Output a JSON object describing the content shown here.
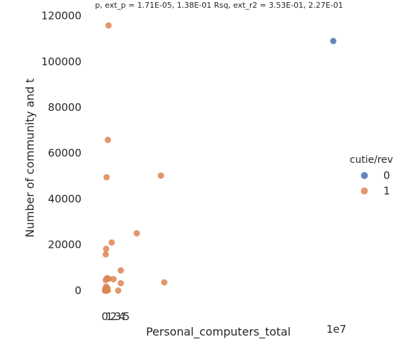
{
  "chart_data": {
    "type": "scatter",
    "title": "p, ext_p = 1.71E-05, 1.38E-01 Rsq, ext_r2 = 3.53E-01, 2.27E-01",
    "xlabel": "Personal_computers_total",
    "ylabel": "Number of community and t",
    "x_offset_text": "1e7",
    "xlim": [
      -2.5,
      55.5
    ],
    "ylim": [
      -8000,
      122000
    ],
    "x_ticks": [
      0,
      1,
      2,
      3,
      4,
      5
    ],
    "x_tick_labels": [
      "0",
      "1",
      "2",
      "3",
      "4",
      "5"
    ],
    "y_ticks": [
      0,
      20000,
      40000,
      60000,
      80000,
      100000,
      120000
    ],
    "y_tick_labels": [
      "0",
      "20000",
      "40000",
      "60000",
      "80000",
      "100000",
      "120000"
    ],
    "legend": {
      "title": "cutie/rev",
      "placement": "center-right",
      "entries": [
        {
          "label": "0",
          "color": "#4c72b0"
        },
        {
          "label": "1",
          "color": "#dd8452"
        }
      ]
    },
    "series": [
      {
        "name": "0",
        "color": "#4c72b0",
        "points": [
          [
            53.0,
            109000
          ]
        ]
      },
      {
        "name": "1",
        "color": "#dd8452",
        "points": [
          [
            0.85,
            115800
          ],
          [
            0.7,
            65800
          ],
          [
            0.4,
            49500
          ],
          [
            13.0,
            50200
          ],
          [
            7.4,
            25000
          ],
          [
            1.6,
            21000
          ],
          [
            0.3,
            18200
          ],
          [
            0.2,
            15800
          ],
          [
            3.7,
            8800
          ],
          [
            0.5,
            5400
          ],
          [
            0.9,
            5200
          ],
          [
            2.0,
            5000
          ],
          [
            0.2,
            4600
          ],
          [
            13.8,
            3600
          ],
          [
            3.7,
            3200
          ],
          [
            0.3,
            1700
          ],
          [
            0.6,
            1000
          ],
          [
            0.1,
            800
          ],
          [
            0.2,
            400
          ],
          [
            0.4,
            200
          ],
          [
            0.1,
            100
          ],
          [
            0.05,
            0
          ],
          [
            0.3,
            -100
          ],
          [
            0.7,
            50
          ],
          [
            3.1,
            0
          ]
        ]
      }
    ]
  }
}
